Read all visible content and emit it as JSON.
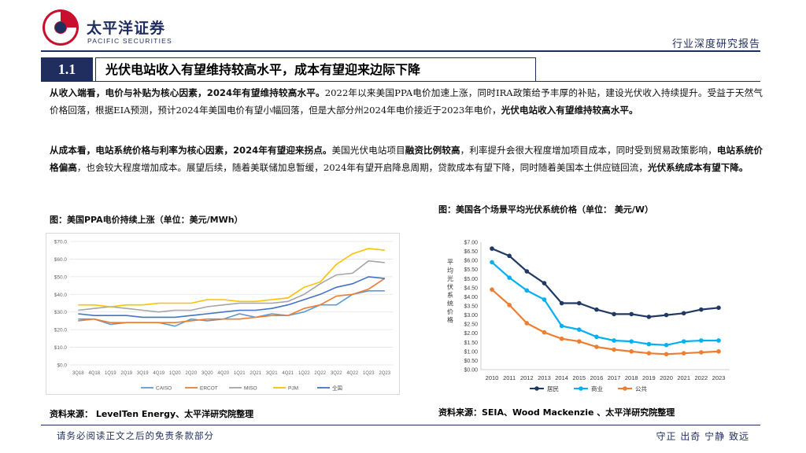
{
  "header": {
    "company_cn": "太平洋证券",
    "company_en": "PACIFIC SECURITIES",
    "report_type": "行业深度研究报告"
  },
  "section": {
    "number": "1.1",
    "title": "光伏电站收入有望维持较高水平，成本有望迎来边际下降"
  },
  "paragraphs": [
    {
      "lead": "从收入端看，电价与补贴为核心因素，2024年有望维持较高水平。",
      "body": "2022年以来美国PPA电价加速上涨，同时IRA政策给予丰厚的补贴，建设光伏收入持续提升。受益于天然气价格回落，根据EIA预测，预计2024年美国电价有望小幅回落，但是大部分州2024年电价接近于2023年电价，",
      "tail": "光伏电站收入有望维持较高水平。"
    },
    {
      "lead": "从成本看，电站系统价格与利率为核心因素，2024年有望迎来拐点。",
      "body1": "美国光伏电站项目",
      "bold1": "融资比例较高",
      "body2": "，利率提升会很大程度增加项目成本，同时受到贸易政策影响，",
      "bold2": "电站系统价格偏高",
      "body3": "，也会较大程度增加成本。展望后续，随着美联储加息暂缓，2024年有望开启降息周期，贷款成本有望下降，同时随着美国本土供应链回流，",
      "tail": "光伏系统成本有望下降。"
    }
  ],
  "figure1": {
    "title": "图：美国PPA电价持续上涨（单位：美元/MWh）",
    "source": "资料来源： LevelTen Energy、太平洋研究院整理"
  },
  "figure2": {
    "title": "图：美国各个场景平均光伏系统价格（单位： 美元/W）",
    "source": "资料来源：SEIA、Wood Mackenzie 、太平洋研究院整理"
  },
  "footer": {
    "disclaimer": "请务必阅读正文之后的免责条款部分",
    "motto": "守正  出奇  宁静  致远"
  },
  "chart_data": [
    {
      "type": "line",
      "title": "美国PPA电价持续上涨（单位：美元/MWh）",
      "ylim": [
        0,
        70
      ],
      "yticks": [
        "$0.0",
        "$10.0",
        "$20.0",
        "$30.0",
        "$40.0",
        "$50.0",
        "$60.0",
        "$70.0"
      ],
      "ytick_values": [
        0,
        10,
        20,
        30,
        40,
        50,
        60,
        70
      ],
      "categories": [
        "3Q18",
        "4Q18",
        "1Q19",
        "2Q19",
        "3Q19",
        "4Q19",
        "1Q20",
        "2Q20",
        "3Q20",
        "4Q20",
        "1Q21",
        "2Q21",
        "3Q21",
        "4Q21",
        "1Q22",
        "2Q22",
        "3Q22",
        "4Q22",
        "1Q23",
        "2Q23"
      ],
      "xtick_labels": [
        "3Q18",
        "4Q18",
        "1Q19",
        "2Q19",
        "3Q19",
        "4Q19",
        "1Q20",
        "2Q20",
        "3Q20",
        "4Q20",
        "1Q21",
        "2Q21",
        "3Q21",
        "4Q21",
        "1Q22",
        "2Q22",
        "3Q22",
        "4Q22",
        "1Q23",
        "2Q23"
      ],
      "series": [
        {
          "name": "CAISO",
          "color": "#5b9bd5",
          "values": [
            26,
            26,
            23,
            24,
            24,
            24,
            22,
            26,
            25,
            26,
            29,
            27,
            29,
            28,
            30,
            34,
            34,
            40,
            42,
            42
          ]
        },
        {
          "name": "ERCOT",
          "color": "#ed7d31",
          "values": [
            25,
            26,
            24,
            24,
            24,
            24,
            24,
            25,
            26,
            26,
            26,
            27,
            28,
            28,
            32,
            34,
            39,
            40,
            43,
            49
          ]
        },
        {
          "name": "MISO",
          "color": "#a5a5a5",
          "values": [
            31,
            32,
            33,
            32,
            31,
            30,
            31,
            31,
            33,
            34,
            35,
            35,
            35,
            36,
            40,
            46,
            51,
            52,
            59,
            58
          ]
        },
        {
          "name": "PJM",
          "color": "#ffc000",
          "values": [
            34,
            34,
            33,
            34,
            34,
            35,
            35,
            35,
            37,
            37,
            36,
            36,
            37,
            38,
            44,
            47,
            57,
            63,
            66,
            65
          ]
        },
        {
          "name": "全国",
          "color": "#4472c4",
          "values": [
            29,
            28,
            28,
            28,
            27,
            27,
            27,
            28,
            29,
            30,
            31,
            31,
            32,
            34,
            37,
            40,
            44,
            46,
            50,
            49
          ]
        }
      ],
      "legend": "bottom"
    },
    {
      "type": "line",
      "title": "美国各个场景平均光伏系统价格（单位： 美元/W）",
      "ylabel": "平均光伏系统价格",
      "ylim": [
        0,
        7
      ],
      "yticks": [
        "$0.00",
        "$0.50",
        "$1.00",
        "$1.50",
        "$2.00",
        "$2.50",
        "$3.00",
        "$3.50",
        "$4.00",
        "$4.50",
        "$5.00",
        "$5.50",
        "$6.00",
        "$6.50",
        "$7.00"
      ],
      "ytick_values": [
        0,
        0.5,
        1,
        1.5,
        2,
        2.5,
        3,
        3.5,
        4,
        4.5,
        5,
        5.5,
        6,
        6.5,
        7
      ],
      "categories": [
        "2010",
        "2011",
        "2012",
        "2013",
        "2014",
        "2015",
        "2016",
        "2017",
        "2018",
        "2019",
        "2020",
        "2021",
        "2022",
        "2023"
      ],
      "series": [
        {
          "name": "居民",
          "color": "#1f3864",
          "values": [
            6.65,
            6.25,
            5.4,
            4.75,
            3.65,
            3.65,
            3.3,
            3.05,
            3.05,
            2.9,
            3.0,
            3.1,
            3.3,
            3.4
          ]
        },
        {
          "name": "商业",
          "color": "#00b0f0",
          "values": [
            5.9,
            5.05,
            4.35,
            3.85,
            2.4,
            2.2,
            1.8,
            1.6,
            1.55,
            1.4,
            1.35,
            1.55,
            1.6,
            1.6
          ]
        },
        {
          "name": "公共",
          "color": "#ed7d31",
          "values": [
            4.4,
            3.55,
            2.55,
            2.05,
            1.7,
            1.55,
            1.25,
            1.1,
            1.0,
            0.9,
            0.85,
            0.9,
            0.95,
            1.0
          ]
        }
      ],
      "legend": "bottom"
    }
  ]
}
